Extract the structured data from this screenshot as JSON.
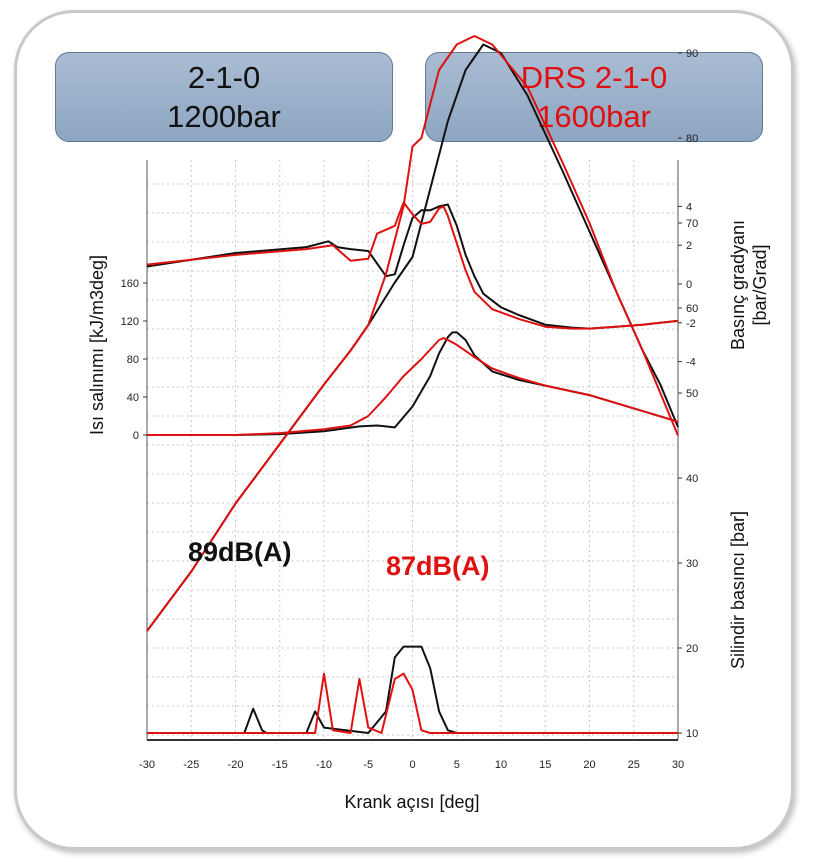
{
  "legend_boxes": [
    {
      "line1": "2-1-0",
      "line2": "1200bar",
      "color": "#111111"
    },
    {
      "line1": "DRS 2-1-0",
      "line2": "1600bar",
      "color": "#e01010"
    }
  ],
  "annotations": [
    {
      "text": "89dB(A)",
      "color": "#111111"
    },
    {
      "text": "87dB(A)",
      "color": "#e01010"
    }
  ],
  "chart_data": {
    "type": "line",
    "title": "",
    "xlabel": "Krank açısı [deg]",
    "x_ticks": [
      -30,
      -25,
      -20,
      -15,
      -10,
      -5,
      0,
      5,
      10,
      15,
      20,
      25,
      30
    ],
    "xlim": [
      -30,
      30
    ],
    "grid": true,
    "y_axes": [
      {
        "id": "heat",
        "label": "Isı salınımı [kJ/m3deg]",
        "side": "left",
        "ticks": [
          0,
          40,
          80,
          120,
          160
        ]
      },
      {
        "id": "grad",
        "label_lines": [
          "Basınç gradyanı",
          "[bar/Grad]"
        ],
        "side": "right",
        "ticks": [
          4,
          2,
          0,
          -2,
          -4
        ]
      },
      {
        "id": "press",
        "label": "Silindir basıncı [bar]",
        "side": "right",
        "ticks": [
          90,
          80,
          70,
          60,
          50,
          40,
          30,
          20,
          10
        ]
      }
    ],
    "series": [
      {
        "name": "2-1-0 1200bar",
        "color": "#111111",
        "curves": {
          "grad": [
            [
              -30,
              0.9
            ],
            [
              -20,
              1.6
            ],
            [
              -12,
              1.9
            ],
            [
              -9.5,
              2.2
            ],
            [
              -8.5,
              1.9
            ],
            [
              -7,
              1.8
            ],
            [
              -5,
              1.7
            ],
            [
              -3,
              0.4
            ],
            [
              -2,
              0.5
            ],
            [
              -1,
              2
            ],
            [
              0,
              3.4
            ],
            [
              1,
              3.8
            ],
            [
              2,
              3.8
            ],
            [
              3,
              4
            ],
            [
              4,
              4.1
            ],
            [
              5,
              3
            ],
            [
              6,
              1.5
            ],
            [
              7,
              0.4
            ],
            [
              8,
              -0.5
            ],
            [
              10,
              -1.2
            ],
            [
              12,
              -1.6
            ],
            [
              15,
              -2.1
            ],
            [
              18,
              -2.25
            ],
            [
              20,
              -2.3
            ],
            [
              23,
              -2.2
            ],
            [
              26,
              -2.1
            ],
            [
              28,
              -2
            ],
            [
              30,
              -1.9
            ]
          ],
          "heat": [
            [
              -30,
              0
            ],
            [
              -20,
              0
            ],
            [
              -15,
              1
            ],
            [
              -10,
              4
            ],
            [
              -6,
              9
            ],
            [
              -4,
              10
            ],
            [
              -2,
              8
            ],
            [
              0,
              30
            ],
            [
              2,
              62
            ],
            [
              3,
              86
            ],
            [
              4,
              103
            ],
            [
              4.5,
              108
            ],
            [
              5,
              108
            ],
            [
              6,
              100
            ],
            [
              7,
              84
            ],
            [
              9,
              67
            ],
            [
              12,
              58
            ],
            [
              15,
              52
            ],
            [
              20,
              42
            ],
            [
              25,
              28
            ],
            [
              30,
              14
            ]
          ],
          "press": [
            [
              -30,
              22
            ],
            [
              -25,
              29
            ],
            [
              -20,
              37
            ],
            [
              -15,
              44
            ],
            [
              -10,
              51
            ],
            [
              -7,
              55
            ],
            [
              -5,
              58
            ],
            [
              -2,
              63
            ],
            [
              0,
              66
            ],
            [
              2,
              74
            ],
            [
              4,
              82
            ],
            [
              6,
              88
            ],
            [
              8,
              91
            ],
            [
              10,
              90
            ],
            [
              13,
              85
            ],
            [
              17,
              76
            ],
            [
              20,
              69
            ],
            [
              23,
              62
            ],
            [
              26,
              55
            ],
            [
              28,
              51
            ],
            [
              30,
              46
            ]
          ],
          "bottom_trace": [
            [
              -30,
              0
            ],
            [
              -19,
              0
            ],
            [
              -18,
              9
            ],
            [
              -17,
              1
            ],
            [
              -16.5,
              0
            ],
            [
              -12,
              0
            ],
            [
              -11,
              8
            ],
            [
              -10,
              2
            ],
            [
              -5,
              0
            ],
            [
              -3,
              8
            ],
            [
              -2,
              28
            ],
            [
              -1,
              32
            ],
            [
              1,
              32
            ],
            [
              2,
              24
            ],
            [
              3,
              8
            ],
            [
              4,
              1
            ],
            [
              5,
              0
            ],
            [
              30,
              0
            ]
          ]
        }
      },
      {
        "name": "DRS 2-1-0 1600bar",
        "color": "#e01010",
        "curves": {
          "grad": [
            [
              -30,
              1
            ],
            [
              -20,
              1.5
            ],
            [
              -12,
              1.8
            ],
            [
              -9,
              2
            ],
            [
              -7,
              1.2
            ],
            [
              -5,
              1.3
            ],
            [
              -4,
              2.6
            ],
            [
              -3,
              2.8
            ],
            [
              -2,
              3
            ],
            [
              -1,
              4.2
            ],
            [
              0,
              3.6
            ],
            [
              1,
              3.1
            ],
            [
              2,
              3.2
            ],
            [
              3,
              3.9
            ],
            [
              3.5,
              4
            ],
            [
              4,
              3.5
            ],
            [
              5,
              2.1
            ],
            [
              6,
              0.7
            ],
            [
              7,
              -0.4
            ],
            [
              9,
              -1.3
            ],
            [
              12,
              -1.8
            ],
            [
              15,
              -2.2
            ],
            [
              18,
              -2.3
            ],
            [
              20,
              -2.3
            ],
            [
              23,
              -2.2
            ],
            [
              26,
              -2.1
            ],
            [
              28,
              -2
            ],
            [
              30,
              -1.9
            ]
          ],
          "heat": [
            [
              -30,
              0
            ],
            [
              -20,
              0
            ],
            [
              -15,
              2
            ],
            [
              -10,
              6
            ],
            [
              -7,
              10
            ],
            [
              -5,
              20
            ],
            [
              -3,
              40
            ],
            [
              -1,
              62
            ],
            [
              1,
              80
            ],
            [
              3,
              100
            ],
            [
              3.5,
              102
            ],
            [
              4,
              100
            ],
            [
              5,
              95
            ],
            [
              7,
              82
            ],
            [
              9,
              70
            ],
            [
              12,
              60
            ],
            [
              15,
              52
            ],
            [
              20,
              42
            ],
            [
              25,
              28
            ],
            [
              30,
              14
            ]
          ],
          "press": [
            [
              -30,
              22
            ],
            [
              -25,
              29
            ],
            [
              -20,
              37
            ],
            [
              -15,
              44
            ],
            [
              -10,
              51
            ],
            [
              -7,
              55
            ],
            [
              -5,
              58
            ],
            [
              -3,
              64
            ],
            [
              -1,
              72
            ],
            [
              0,
              79
            ],
            [
              1,
              80
            ],
            [
              2,
              84
            ],
            [
              3,
              88
            ],
            [
              5,
              91
            ],
            [
              7,
              92
            ],
            [
              9,
              91
            ],
            [
              13,
              86
            ],
            [
              17,
              77
            ],
            [
              20,
              70
            ],
            [
              23,
              62
            ],
            [
              26,
              55
            ],
            [
              28,
              50
            ],
            [
              30,
              45
            ]
          ],
          "bottom_trace": [
            [
              -30,
              0
            ],
            [
              -11,
              0
            ],
            [
              -10,
              22
            ],
            [
              -9,
              1
            ],
            [
              -7,
              0
            ],
            [
              -6,
              20
            ],
            [
              -5,
              2
            ],
            [
              -3.5,
              0
            ],
            [
              -2,
              20
            ],
            [
              -1,
              22
            ],
            [
              0,
              16
            ],
            [
              1,
              1
            ],
            [
              2,
              0
            ],
            [
              30,
              0
            ]
          ]
        }
      }
    ]
  }
}
